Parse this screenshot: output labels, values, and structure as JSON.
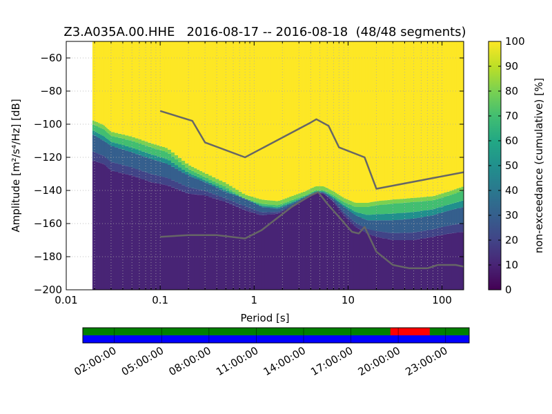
{
  "chart_data": [
    {
      "type": "heatmap",
      "title": "Z3.A035A.00.HHE   2016-08-17 -- 2016-08-18  (48/48 segments)",
      "xlabel": "Period [s]",
      "ylabel": "Amplitude [m²/s⁴/Hz] [dB]",
      "x_scale": "log",
      "xlim": [
        0.01,
        170
      ],
      "ylim": [
        -200,
        -50
      ],
      "x_ticks": [
        "0.01",
        "0.1",
        "1",
        "10",
        "100"
      ],
      "y_ticks": [
        "−60",
        "−80",
        "−100",
        "−120",
        "−140",
        "−160",
        "−180",
        "−200"
      ],
      "grid": true,
      "colorbar": {
        "label": "non-exceedance (cumulative) [%]",
        "range": [
          0,
          100
        ],
        "ticks": [
          "0",
          "10",
          "20",
          "30",
          "40",
          "50",
          "60",
          "70",
          "80",
          "90",
          "100"
        ],
        "colormap": "viridis"
      },
      "boundaries": {
        "period": [
          0.019,
          0.025,
          0.03,
          0.05,
          0.08,
          0.12,
          0.2,
          0.3,
          0.5,
          0.8,
          1.2,
          1.8,
          2.5,
          3.5,
          4.5,
          5.5,
          7,
          9,
          12,
          16,
          20,
          30,
          50,
          80,
          120,
          170
        ],
        "p5_db": [
          -122,
          -124,
          -128,
          -131,
          -135,
          -137,
          -142,
          -143,
          -147,
          -152,
          -155,
          -154,
          -150,
          -145,
          -141,
          -142,
          -147,
          -155,
          -162,
          -166,
          -168,
          -170,
          -170,
          -168,
          -166,
          -165
        ],
        "p30_db": [
          -106,
          -110,
          -113,
          -117,
          -121,
          -124,
          -131,
          -135,
          -141,
          -145,
          -150,
          -151,
          -148,
          -144,
          -141,
          -141,
          -145,
          -150,
          -155,
          -158,
          -158,
          -158,
          -157,
          -155,
          -152,
          -150
        ],
        "p95_db": [
          -100,
          -103,
          -107,
          -110,
          -114,
          -117,
          -127,
          -132,
          -138,
          -145,
          -148,
          -149,
          -146,
          -143,
          -140,
          -140,
          -143,
          -147,
          -150,
          -150,
          -149,
          -148,
          -147,
          -146,
          -143,
          -140
        ]
      },
      "series": [
        {
          "x": [
            0.1,
            0.22,
            0.3,
            0.8,
            4,
            4.6,
            6.2,
            8,
            15,
            20,
            170
          ],
          "y": [
            -92,
            -98,
            -111,
            -120,
            -99,
            -97,
            -101,
            -114,
            -120,
            -139,
            -129
          ]
        },
        {
          "x": [
            0.1,
            0.2,
            0.4,
            0.8,
            1.2,
            2.5,
            4,
            4.8,
            6,
            8,
            11,
            13,
            15,
            20,
            30,
            45,
            70,
            90,
            140,
            170
          ],
          "y": [
            -168,
            -167,
            -167,
            -169,
            -164,
            -150,
            -143,
            -141,
            -148,
            -156,
            -165,
            -166,
            -162,
            -177,
            -185,
            -187,
            -187,
            -185,
            -185,
            -186
          ]
        }
      ],
      "colors": {
        "line": "#666666",
        "cmap": [
          "#440154",
          "#482475",
          "#414487",
          "#355f8d",
          "#2a788e",
          "#21908d",
          "#22a884",
          "#42be71",
          "#7ad151",
          "#bddf26",
          "#fde725"
        ]
      }
    },
    {
      "type": "timeline",
      "x_ticks": [
        "02:00:00",
        "05:00:00",
        "08:00:00",
        "11:00:00",
        "14:00:00",
        "17:00:00",
        "20:00:00",
        "23:00:00"
      ],
      "tick_hours": [
        2,
        5,
        8,
        11,
        14,
        17,
        20,
        23
      ],
      "range_hours": [
        0,
        24.5
      ],
      "status_rows": [
        {
          "color": "#008000",
          "gaps": [
            {
              "start_hour": 19.5,
              "end_hour": 22,
              "color": "#ff0000"
            }
          ]
        },
        {
          "color": "#0000ff",
          "gaps": []
        }
      ]
    }
  ]
}
